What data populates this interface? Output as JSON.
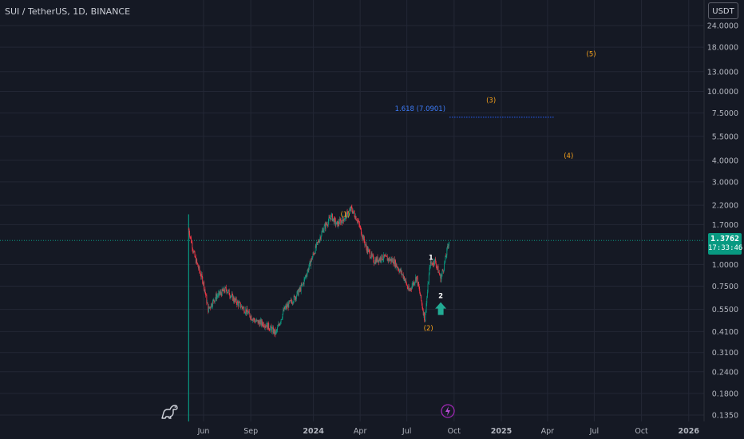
{
  "header": {
    "symbol": "SUI / TetherUS, 1D, BINANCE"
  },
  "currency": "USDT",
  "last_price": {
    "value": "1.3762",
    "countdown": "17:33:46"
  },
  "colors": {
    "up": "#089981",
    "down": "#f23645",
    "wave": "#f7a21b",
    "fib": "#2962ff",
    "background": "#151924"
  },
  "chart_data": {
    "type": "candlestick",
    "scale": "log",
    "ylim": [
      0.125,
      28
    ],
    "y_ticks": [
      "24.0000",
      "18.0000",
      "13.0000",
      "10.0000",
      "7.5000",
      "5.5000",
      "4.0000",
      "3.0000",
      "2.2000",
      "1.7000",
      "1.0000",
      "0.7500",
      "0.5500",
      "0.4100",
      "0.3100",
      "0.2400",
      "0.1800",
      "0.1350"
    ],
    "x_ticks": [
      "Jun",
      "Sep",
      "2024",
      "Apr",
      "Jul",
      "Oct",
      "2025",
      "Apr",
      "Jul",
      "Oct",
      "2026"
    ],
    "series": [
      {
        "date": "2023-05-03",
        "close": 1.6
      },
      {
        "date": "2023-05-15",
        "close": 1.1
      },
      {
        "date": "2023-06-01",
        "close": 0.78
      },
      {
        "date": "2023-06-10",
        "close": 0.55
      },
      {
        "date": "2023-06-25",
        "close": 0.65
      },
      {
        "date": "2023-07-15",
        "close": 0.72
      },
      {
        "date": "2023-08-01",
        "close": 0.62
      },
      {
        "date": "2023-08-20",
        "close": 0.55
      },
      {
        "date": "2023-09-10",
        "close": 0.47
      },
      {
        "date": "2023-10-01",
        "close": 0.45
      },
      {
        "date": "2023-10-20",
        "close": 0.4
      },
      {
        "date": "2023-11-05",
        "close": 0.55
      },
      {
        "date": "2023-11-25",
        "close": 0.64
      },
      {
        "date": "2023-12-10",
        "close": 0.75
      },
      {
        "date": "2024-01-01",
        "close": 1.15
      },
      {
        "date": "2024-01-20",
        "close": 1.6
      },
      {
        "date": "2024-02-05",
        "close": 1.9
      },
      {
        "date": "2024-02-15",
        "close": 1.7
      },
      {
        "date": "2024-03-01",
        "close": 1.85
      },
      {
        "date": "2024-03-15",
        "close": 2.1
      },
      {
        "date": "2024-03-27",
        "close": 1.8
      },
      {
        "date": "2024-04-13",
        "close": 1.25
      },
      {
        "date": "2024-04-28",
        "close": 1.05
      },
      {
        "date": "2024-05-15",
        "close": 1.1
      },
      {
        "date": "2024-06-05",
        "close": 1.05
      },
      {
        "date": "2024-06-25",
        "close": 0.85
      },
      {
        "date": "2024-07-05",
        "close": 0.7
      },
      {
        "date": "2024-07-20",
        "close": 0.85
      },
      {
        "date": "2024-08-05",
        "close": 0.48
      },
      {
        "date": "2024-08-15",
        "close": 1.0
      },
      {
        "date": "2024-08-25",
        "close": 1.05
      },
      {
        "date": "2024-09-05",
        "close": 0.83
      },
      {
        "date": "2024-09-12",
        "close": 1.0
      },
      {
        "date": "2024-09-21",
        "close": 1.3762
      }
    ],
    "last_price_line": 1.3762,
    "annotations": [
      {
        "label": "(1)",
        "date": "2024-03-03",
        "price": 1.95
      },
      {
        "label": "(2)",
        "date": "2024-08-12",
        "price": 0.43
      },
      {
        "label": "1",
        "date": "2024-08-17",
        "price": 1.1
      },
      {
        "label": "2",
        "date": "2024-09-05",
        "price": 0.66
      },
      {
        "label": "(3)",
        "date": "2024-12-12",
        "price": 8.9
      },
      {
        "label": "(4)",
        "date": "2025-05-12",
        "price": 4.25
      },
      {
        "label": "(5)",
        "date": "2025-06-25",
        "price": 16.5
      }
    ],
    "fib_level": {
      "label": "1.618 (7.0901)",
      "price": 7.0901,
      "from": "2024-09-22",
      "to": "2025-04-15"
    },
    "markers": [
      {
        "type": "up-arrow",
        "date": "2024-09-05",
        "price": 0.55
      }
    ]
  }
}
